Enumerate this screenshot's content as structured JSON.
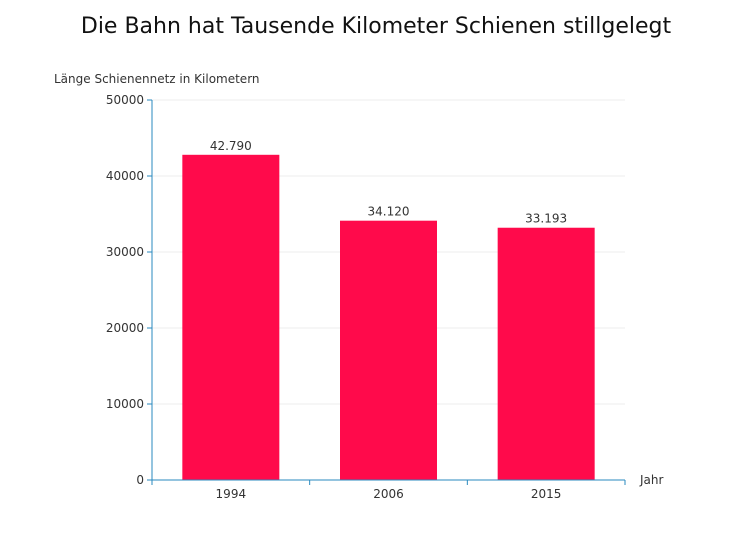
{
  "chart_data": {
    "type": "bar",
    "title": "Die Bahn hat Tausende Kilometer Schienen stillgelegt",
    "xlabel": "Jahr",
    "ylabel": "Länge Schienennetz in Kilometern",
    "categories": [
      "1994",
      "2006",
      "2015"
    ],
    "values": [
      42790,
      34120,
      33193
    ],
    "data_labels": [
      "42.790",
      "34.120",
      "33.193"
    ],
    "ylim": [
      0,
      50000
    ],
    "yticks": [
      0,
      10000,
      20000,
      30000,
      40000,
      50000
    ],
    "ytick_labels": [
      "0",
      "10000",
      "20000",
      "30000",
      "40000",
      "50000"
    ],
    "grid": true,
    "legend": "none",
    "colors": {
      "bar": "#ff0a4b",
      "axis": "#2a8abf",
      "grid": "#eeeeee"
    }
  }
}
